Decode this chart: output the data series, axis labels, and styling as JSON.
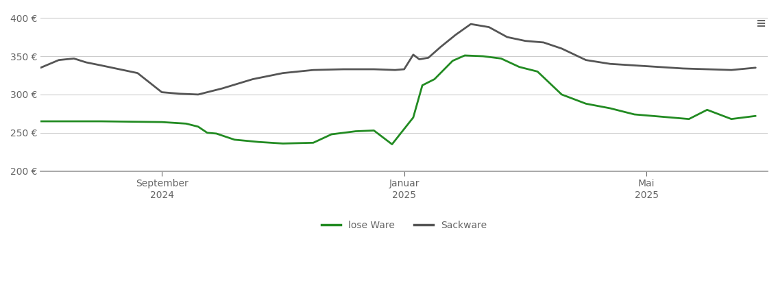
{
  "background_color": "#ffffff",
  "grid_color": "#cccccc",
  "text_color": "#666666",
  "lose_ware_color": "#228B22",
  "sackware_color": "#555555",
  "line_width": 2.0,
  "legend_labels": [
    "lose Ware",
    "Sackware"
  ],
  "x_tick_labels": [
    "September\n2024",
    "Januar\n2025",
    "Mai\n2025"
  ],
  "x_tick_positions": [
    2.0,
    6.0,
    10.0
  ],
  "xlim": [
    0,
    12
  ],
  "ylim": [
    200,
    410
  ],
  "yticks": [
    200,
    250,
    300,
    350,
    400
  ],
  "lose_ware_x": [
    0.0,
    1.0,
    2.0,
    2.4,
    2.6,
    2.75,
    2.9,
    3.2,
    3.6,
    4.0,
    4.5,
    4.8,
    5.0,
    5.1,
    5.2,
    5.5,
    5.8,
    6.0,
    6.15,
    6.3,
    6.5,
    6.8,
    7.0,
    7.3,
    7.6,
    7.9,
    8.2,
    8.6,
    9.0,
    9.4,
    9.8,
    10.1,
    10.4,
    10.7,
    11.0,
    11.4,
    11.8
  ],
  "lose_ware_y": [
    265,
    265,
    264,
    262,
    258,
    250,
    249,
    241,
    238,
    236,
    237,
    248,
    250,
    251,
    252,
    253,
    235,
    255,
    270,
    312,
    320,
    344,
    351,
    350,
    347,
    336,
    330,
    300,
    288,
    282,
    274,
    272,
    270,
    268,
    280,
    268,
    272
  ],
  "sackware_x": [
    0.0,
    0.3,
    0.55,
    0.75,
    1.0,
    1.3,
    1.6,
    2.0,
    2.3,
    2.6,
    3.0,
    3.5,
    4.0,
    4.5,
    5.0,
    5.5,
    5.85,
    6.0,
    6.15,
    6.25,
    6.4,
    6.6,
    6.85,
    7.1,
    7.4,
    7.7,
    8.0,
    8.3,
    8.6,
    9.0,
    9.4,
    9.8,
    10.2,
    10.6,
    11.0,
    11.4,
    11.8
  ],
  "sackware_y": [
    335,
    345,
    347,
    342,
    338,
    333,
    328,
    303,
    301,
    300,
    308,
    320,
    328,
    332,
    333,
    333,
    332,
    333,
    352,
    346,
    348,
    362,
    378,
    392,
    388,
    375,
    370,
    368,
    360,
    345,
    340,
    338,
    336,
    334,
    333,
    332,
    335
  ]
}
